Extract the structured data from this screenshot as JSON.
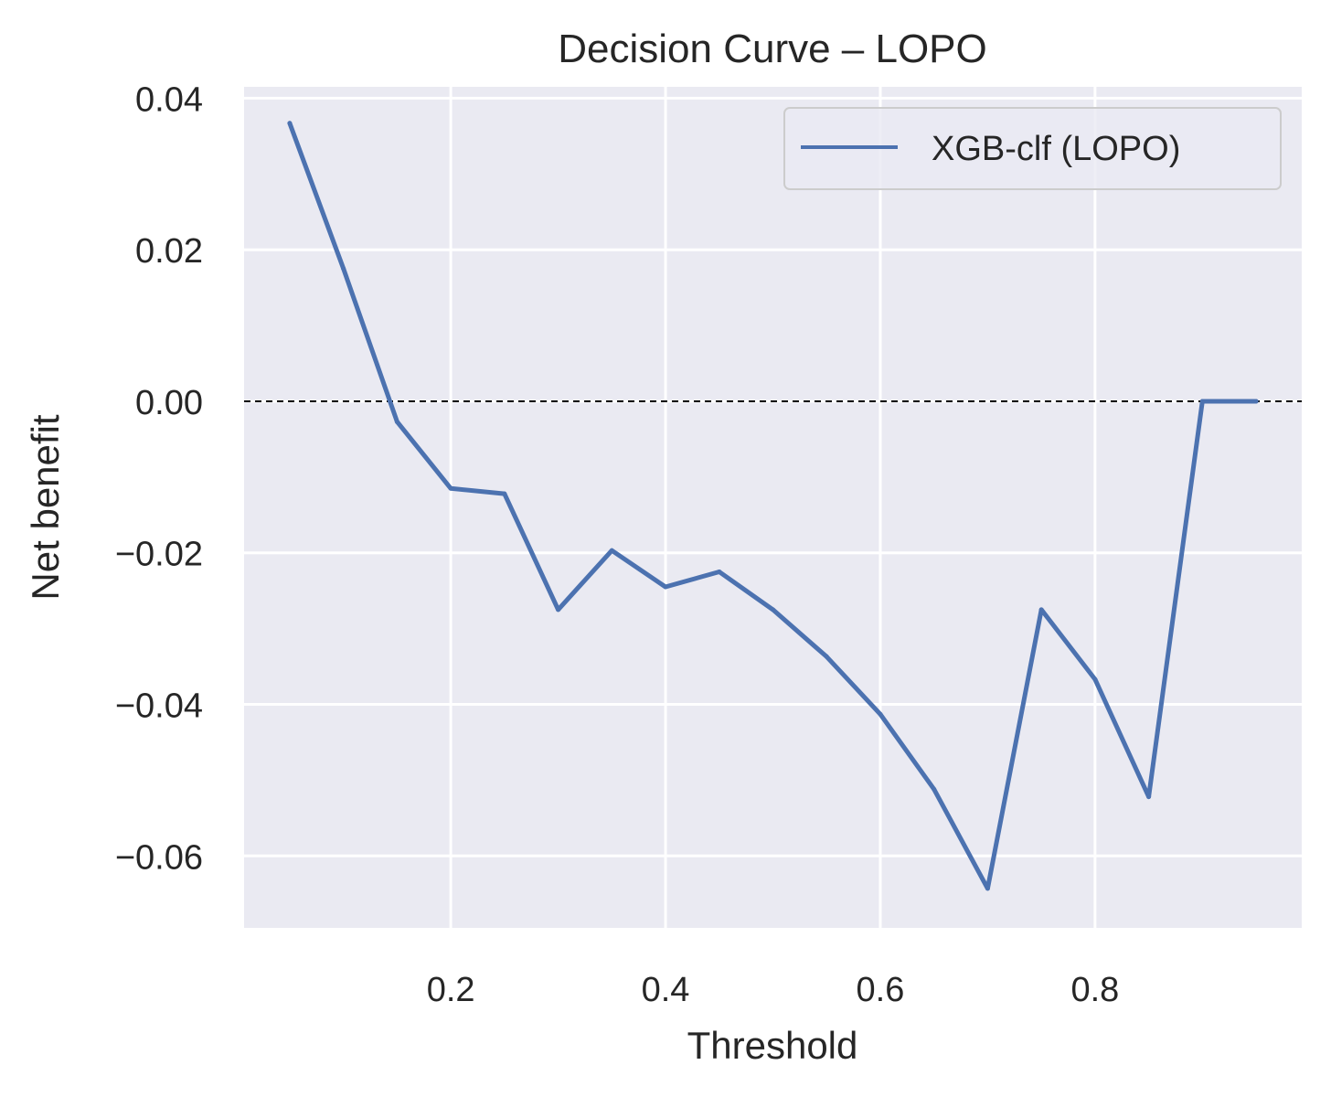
{
  "chart_data": {
    "type": "line",
    "title": "Decision Curve – LOPO",
    "xlabel": "Threshold",
    "ylabel": "Net benefit",
    "xlim": [
      0.0075,
      0.9925
    ],
    "ylim": [
      -0.0695,
      0.0415
    ],
    "xticks": [
      0.2,
      0.4,
      0.6,
      0.8
    ],
    "xtick_labels": [
      "0.2",
      "0.4",
      "0.6",
      "0.8"
    ],
    "yticks": [
      0.04,
      0.02,
      0.0,
      -0.02,
      -0.04,
      -0.06
    ],
    "ytick_labels": [
      "0.04",
      "0.02",
      "0.00",
      "−0.02",
      "−0.04",
      "−0.06"
    ],
    "grid": true,
    "reference_line": {
      "y": 0,
      "style": "dashed",
      "color": "#000000"
    },
    "legend": {
      "placement": "top-right",
      "entries": [
        "XGB-clf (LOPO)"
      ]
    },
    "series": [
      {
        "name": "XGB-clf (LOPO)",
        "color": "#4c72b0",
        "x": [
          0.05,
          0.1,
          0.15,
          0.2,
          0.25,
          0.3,
          0.35,
          0.4,
          0.45,
          0.5,
          0.55,
          0.6,
          0.65,
          0.7,
          0.75,
          0.8,
          0.85,
          0.9,
          0.95
        ],
        "y": [
          0.0367,
          0.0175,
          -0.0027,
          -0.0115,
          -0.0122,
          -0.0275,
          -0.0197,
          -0.0245,
          -0.0225,
          -0.0275,
          -0.0337,
          -0.0413,
          -0.0512,
          -0.0643,
          -0.0275,
          -0.0367,
          -0.0522,
          0.0,
          0.0
        ]
      }
    ]
  }
}
